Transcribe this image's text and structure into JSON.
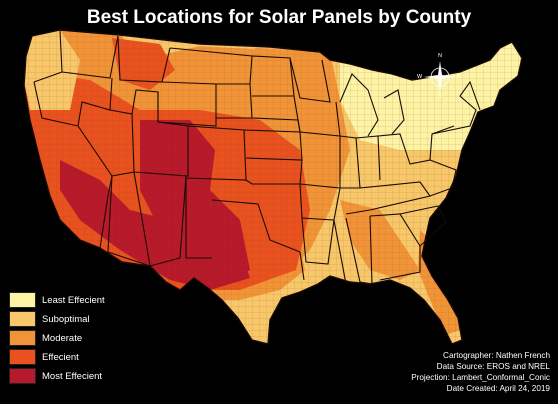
{
  "title": "Best Locations for Solar Panels by County",
  "legend": [
    {
      "label": "Least Effecient",
      "color": "#fdf3a5"
    },
    {
      "label": "Suboptimal",
      "color": "#f7c76a"
    },
    {
      "label": "Moderate",
      "color": "#f19438"
    },
    {
      "label": "Effecient",
      "color": "#e9521f"
    },
    {
      "label": "Most Effecient",
      "color": "#b8192a"
    }
  ],
  "compass": {
    "n": "N",
    "s": "S",
    "e": "E",
    "w": "W"
  },
  "credits": {
    "cartographer": "Cartographer: Nathen French",
    "source": "Data Source: EROS and NREL",
    "projection": "Projection: Lambert_Conformal_Conic",
    "date": "Date Created: April 24, 2019"
  },
  "colors": {
    "background": "#000000",
    "border": "#1a0a05",
    "county_lines": "#8a5a2a"
  }
}
